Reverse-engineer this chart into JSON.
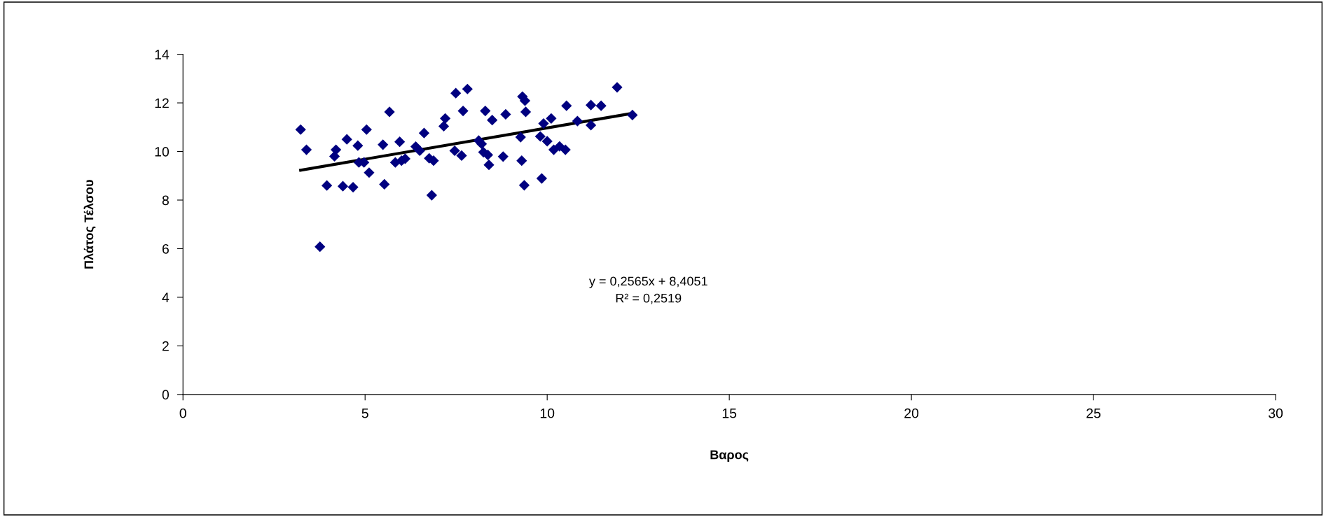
{
  "chart_data": {
    "type": "scatter",
    "xlabel": "Βαρος",
    "ylabel": "Πλάτος Τέλσου",
    "xlim": [
      0,
      30
    ],
    "xticks": [
      0,
      5,
      10,
      15,
      20,
      25,
      30
    ],
    "ylim": [
      0,
      14
    ],
    "yticks": [
      0,
      2,
      4,
      6,
      8,
      10,
      12,
      14
    ],
    "grid": false,
    "legend": false,
    "series": [
      {
        "type": "scatter",
        "color": "#000080",
        "marker": "diamond",
        "x": [
          3.23,
          3.39,
          3.76,
          3.95,
          4.16,
          4.2,
          4.39,
          4.5,
          4.67,
          4.8,
          4.83,
          4.97,
          5.04,
          5.11,
          5.49,
          5.53,
          5.67,
          5.83,
          5.95,
          6.0,
          6.1,
          6.39,
          6.5,
          6.62,
          6.76,
          6.83,
          6.88,
          7.16,
          7.2,
          7.46,
          7.49,
          7.65,
          7.69,
          7.81,
          8.12,
          8.2,
          8.25,
          8.3,
          8.37,
          8.4,
          8.49,
          8.79,
          8.86,
          9.27,
          9.3,
          9.32,
          9.37,
          9.39,
          9.41,
          9.81,
          9.85,
          9.9,
          10.0,
          10.11,
          10.18,
          10.34,
          10.5,
          10.53,
          10.83,
          11.2,
          11.2,
          11.48,
          11.92,
          12.34
        ],
        "values": [
          10.9,
          10.07,
          6.08,
          8.6,
          9.8,
          10.07,
          8.57,
          10.5,
          8.53,
          10.24,
          9.55,
          9.55,
          10.9,
          9.13,
          10.28,
          8.65,
          11.63,
          9.55,
          10.4,
          9.62,
          9.7,
          10.2,
          10.03,
          10.76,
          9.72,
          8.2,
          9.62,
          11.04,
          11.36,
          10.03,
          12.4,
          9.83,
          11.67,
          12.57,
          10.45,
          10.31,
          9.97,
          11.67,
          9.86,
          9.45,
          11.29,
          9.79,
          11.53,
          10.59,
          9.62,
          12.26,
          8.61,
          12.09,
          11.63,
          10.62,
          8.89,
          11.15,
          10.42,
          11.36,
          10.07,
          10.21,
          10.07,
          11.88,
          11.25,
          11.91,
          11.08,
          11.88,
          12.64,
          11.5
        ]
      },
      {
        "type": "line",
        "color": "#000000",
        "marker": "none",
        "line_style": "solid",
        "x": [
          3.23,
          12.34
        ],
        "values": [
          9.23,
          11.57
        ]
      }
    ],
    "annotations": [
      "y = 0,2565x + 8,4051",
      "R² = 0,2519"
    ]
  }
}
